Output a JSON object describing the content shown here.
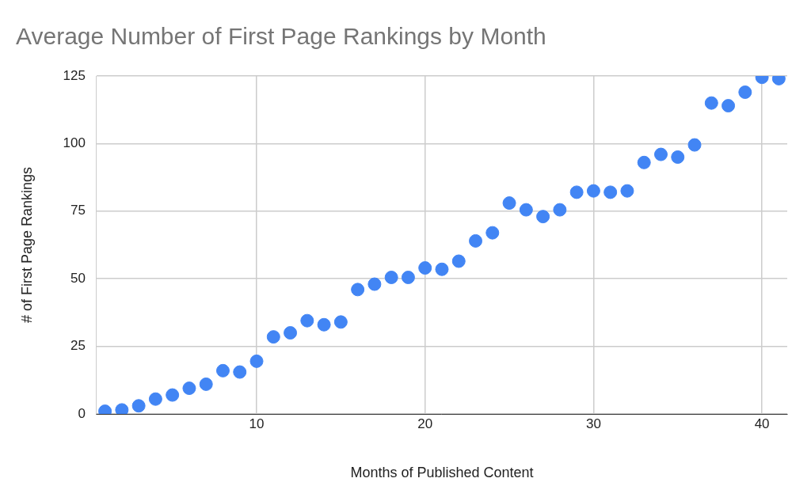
{
  "chart_data": {
    "type": "scatter",
    "title": "Average Number of First Page Rankings by Month",
    "x_label": "Months of Published Content",
    "y_label": "# of First Page Rankings",
    "x": [
      1,
      2,
      3,
      4,
      5,
      6,
      7,
      8,
      9,
      10,
      11,
      12,
      13,
      14,
      15,
      16,
      17,
      18,
      19,
      20,
      21,
      22,
      23,
      24,
      25,
      26,
      27,
      28,
      29,
      30,
      31,
      32,
      33,
      34,
      35,
      36,
      37,
      38,
      39,
      40,
      41
    ],
    "values": [
      1,
      1.5,
      3,
      5.5,
      7,
      9.5,
      11,
      16,
      15.5,
      19.5,
      28.5,
      30,
      34.5,
      33,
      34,
      46,
      48,
      50.5,
      50.5,
      54,
      53.5,
      56.5,
      64,
      67,
      78,
      75.5,
      73,
      75.5,
      82,
      82.5,
      82,
      82.5,
      93,
      96,
      95,
      99.5,
      115,
      114,
      119,
      124.5,
      124
    ],
    "color": "#4285f4",
    "marker": "circle",
    "xlim": [
      0.5,
      41.5
    ],
    "xticks": [
      10,
      20,
      30,
      40
    ],
    "ylim": [
      0,
      125
    ],
    "yticks": [
      0,
      25,
      50,
      75,
      100,
      125
    ],
    "grid": true
  }
}
